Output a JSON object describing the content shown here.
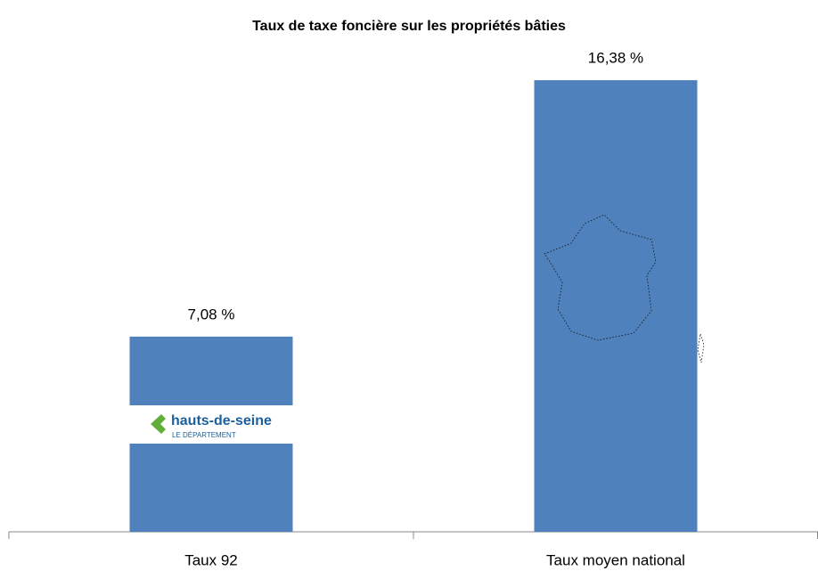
{
  "chart_data": {
    "type": "bar",
    "title": "Taux de taxe foncière sur les propriétés bâties",
    "categories": [
      "Taux  92",
      "Taux moyen national"
    ],
    "values": [
      7.08,
      16.38
    ],
    "value_labels": [
      "7,08 %",
      "16,38 %"
    ],
    "color": "#4f81bd",
    "logo": {
      "name": "hauts-de-seine",
      "tagline": "LE DÉPARTEMENT"
    }
  }
}
